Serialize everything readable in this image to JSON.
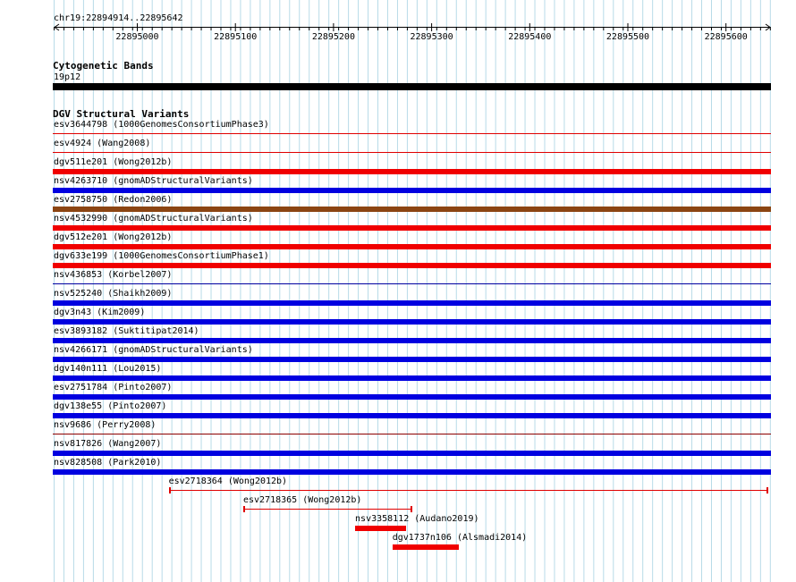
{
  "ruler": {
    "location": "chr19:22894914..22895642",
    "ticks": [
      "22895000",
      "22895100",
      "22895200",
      "22895300",
      "22895400",
      "22895500",
      "22895600"
    ]
  },
  "cyto": {
    "title": "Cytogenetic Bands",
    "band": "19p12"
  },
  "dgv": {
    "title": "DGV Structural Variants",
    "tracks": [
      {
        "label": "esv3644798 (1000GenomesConsortiumPhase3)",
        "color": "#e00000",
        "style": "line"
      },
      {
        "label": "esv4924 (Wang2008)",
        "color": "#e00000",
        "style": "line"
      },
      {
        "label": "dgv511e201 (Wong2012b)",
        "color": "#f00000",
        "style": "bar"
      },
      {
        "label": "nsv4263710 (gnomADStructuralVariants)",
        "color": "#0000e0",
        "style": "bar"
      },
      {
        "label": "esv2758750 (Redon2006)",
        "color": "#8b4513",
        "style": "bar"
      },
      {
        "label": "nsv4532990 (gnomADStructuralVariants)",
        "color": "#f00000",
        "style": "bar"
      },
      {
        "label": "dgv512e201 (Wong2012b)",
        "color": "#f00000",
        "style": "bar"
      },
      {
        "label": "dgv633e199 (1000GenomesConsortiumPhase1)",
        "color": "#f00000",
        "style": "bar"
      },
      {
        "label": "nsv436853 (Korbel2007)",
        "color": "#0000a0",
        "style": "line"
      },
      {
        "label": "nsv525240 (Shaikh2009)",
        "color": "#0000e0",
        "style": "bar"
      },
      {
        "label": "dgv3n43 (Kim2009)",
        "color": "#0000e0",
        "style": "bar"
      },
      {
        "label": "esv3893182 (Suktitipat2014)",
        "color": "#0000e0",
        "style": "bar"
      },
      {
        "label": "nsv4266171 (gnomADStructuralVariants)",
        "color": "#0000e0",
        "style": "bar"
      },
      {
        "label": "dgv140n111 (Lou2015)",
        "color": "#0000e0",
        "style": "bar"
      },
      {
        "label": "esv2751784 (Pinto2007)",
        "color": "#0000e0",
        "style": "bar"
      },
      {
        "label": "dgv138e55 (Pinto2007)",
        "color": "#0000e0",
        "style": "bar"
      },
      {
        "label": "nsv9686 (Perry2008)",
        "color": "#8b0000",
        "style": "line"
      },
      {
        "label": "nsv817826 (Wang2007)",
        "color": "#0000e0",
        "style": "bar"
      },
      {
        "label": "nsv828508 (Park2010)",
        "color": "#0000e0",
        "style": "bar"
      }
    ],
    "partial": [
      {
        "label": "esv2718364 (Wong2012b)",
        "color": "#e00000",
        "style": "line",
        "start": 22895032,
        "end": 22895642
      },
      {
        "label": "esv2718365 (Wong2012b)",
        "color": "#e00000",
        "style": "line",
        "start": 22895108,
        "end": 22895279
      },
      {
        "label": "nsv3358112 (Audano2019)",
        "color": "#f00000",
        "style": "bar",
        "start": 22895222,
        "end": 22895274
      },
      {
        "label": "dgv1737n106 (Alsmadi2014)",
        "color": "#f00000",
        "style": "bar",
        "start": 22895260,
        "end": 22895328
      }
    ]
  }
}
